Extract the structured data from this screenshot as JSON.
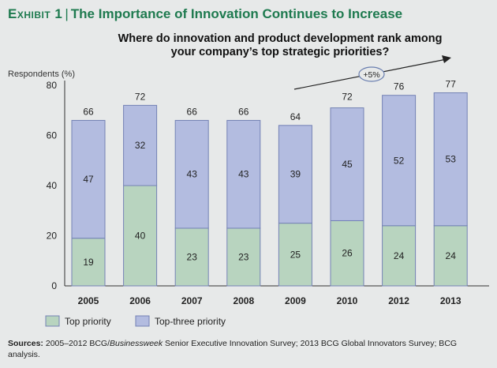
{
  "exhibit": {
    "label": "Exhibit 1",
    "title": "The Importance of Innovation Continues to Increase"
  },
  "chart_data": {
    "type": "bar",
    "stacked": true,
    "title": "Where do innovation and product development rank among your company's top strategic priorities?",
    "title_lines": [
      "Where do innovation and product development rank among",
      "your company’s top strategic priorities?"
    ],
    "ylabel": "Respondents (%)",
    "ylim": [
      0,
      80
    ],
    "yticks": [
      0,
      20,
      40,
      60,
      80
    ],
    "grid": false,
    "legend_placement": "bottom-left",
    "categories": [
      "2005",
      "2006",
      "2007",
      "2008",
      "2009",
      "2010",
      "2012",
      "2013"
    ],
    "series": [
      {
        "name": "Top priority",
        "color": "#b8d4bf",
        "values": [
          19,
          40,
          23,
          23,
          25,
          26,
          24,
          24
        ]
      },
      {
        "name": "Top-three priority",
        "color": "#b3bce0",
        "values": [
          47,
          32,
          43,
          43,
          39,
          45,
          52,
          53
        ]
      }
    ],
    "totals": [
      66,
      72,
      66,
      66,
      64,
      72,
      76,
      77
    ],
    "annotation": "+5%"
  },
  "colors": {
    "accent": "#1e7a4f",
    "bar_border": "#7482b5",
    "background": "#e7e9e9"
  },
  "sources": {
    "label": "Sources:",
    "text_1": " 2005–2012 BCG/",
    "italic": "Businessweek",
    "text_2": " Senior Executive Innovation Survey; 2013 BCG Global Innovators Survey; BCG analysis."
  }
}
